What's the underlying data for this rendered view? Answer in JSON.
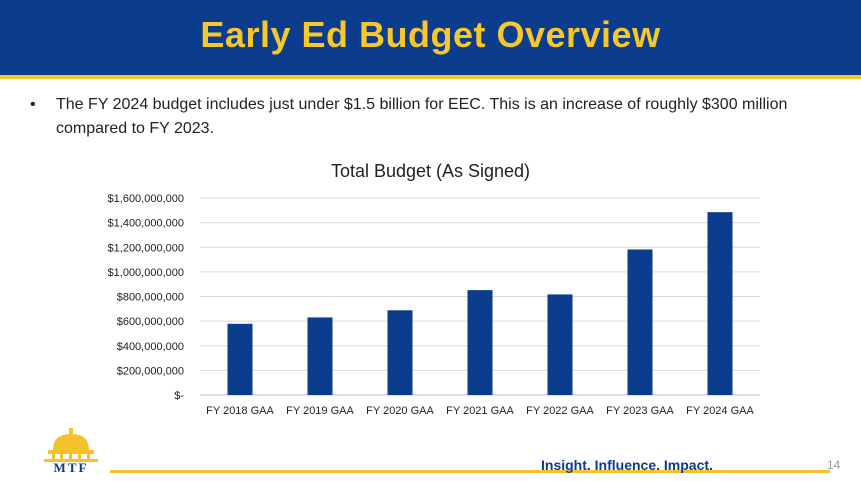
{
  "slide": {
    "title": "Early Ed Budget Overview",
    "bullet": "The FY 2024 budget includes just under $1.5 billion for EEC. This is an increase of roughly $300 million compared to FY 2023.",
    "tagline": "Insight. Influence. Impact.",
    "page_number": "14",
    "logo_text": "MTF"
  },
  "colors": {
    "header_bg": "#0c3d8c",
    "title_gold": "#f7c72c",
    "bar": "#0c3d8c",
    "rule_gold": "#f3c22d"
  },
  "chart_data": {
    "type": "bar",
    "title": "Total Budget (As Signed)",
    "categories": [
      "FY 2018 GAA",
      "FY 2019 GAA",
      "FY 2020 GAA",
      "FY 2021 GAA",
      "FY 2022 GAA",
      "FY 2023 GAA",
      "FY 2024 GAA"
    ],
    "values": [
      578000000,
      630000000,
      688000000,
      852000000,
      817000000,
      1182000000,
      1485000000
    ],
    "ylim": [
      0,
      1600000000
    ],
    "yticks": [
      0,
      200000000,
      400000000,
      600000000,
      800000000,
      1000000000,
      1200000000,
      1400000000,
      1600000000
    ],
    "ytick_labels": [
      "$-",
      "$200,000,000",
      "$400,000,000",
      "$600,000,000",
      "$800,000,000",
      "$1,000,000,000",
      "$1,200,000,000",
      "$1,400,000,000",
      "$1,600,000,000"
    ],
    "grid": true,
    "legend": "none"
  }
}
